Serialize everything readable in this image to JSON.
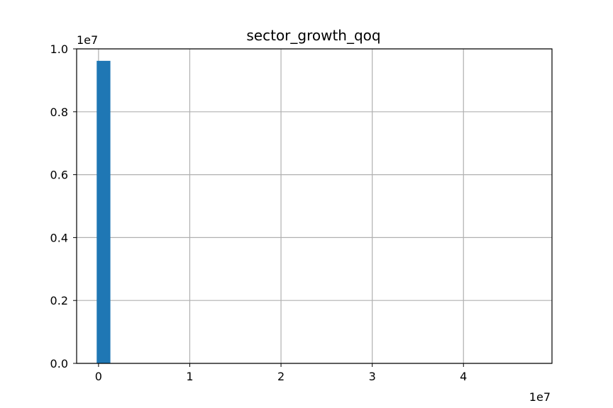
{
  "chart_data": {
    "type": "bar",
    "title": "sector_growth_qoq",
    "xlabel": "",
    "ylabel": "",
    "x_offset_label": "1e7",
    "y_offset_label": "1e7",
    "xlim": [
      -0.24,
      4.97
    ],
    "ylim": [
      0,
      1.0
    ],
    "grid": true,
    "xticks": [
      0,
      1,
      2,
      3,
      4
    ],
    "xtick_labels": [
      "0",
      "1",
      "2",
      "3",
      "4"
    ],
    "yticks": [
      0.0,
      0.2,
      0.4,
      0.6,
      0.8,
      1.0
    ],
    "ytick_labels": [
      "0.0",
      "0.2",
      "0.4",
      "0.6",
      "0.8",
      "1.0"
    ],
    "bars": [
      {
        "x0": -0.02,
        "x1": 0.13,
        "value": 0.962
      }
    ],
    "bar_color": "#1f77b4"
  }
}
